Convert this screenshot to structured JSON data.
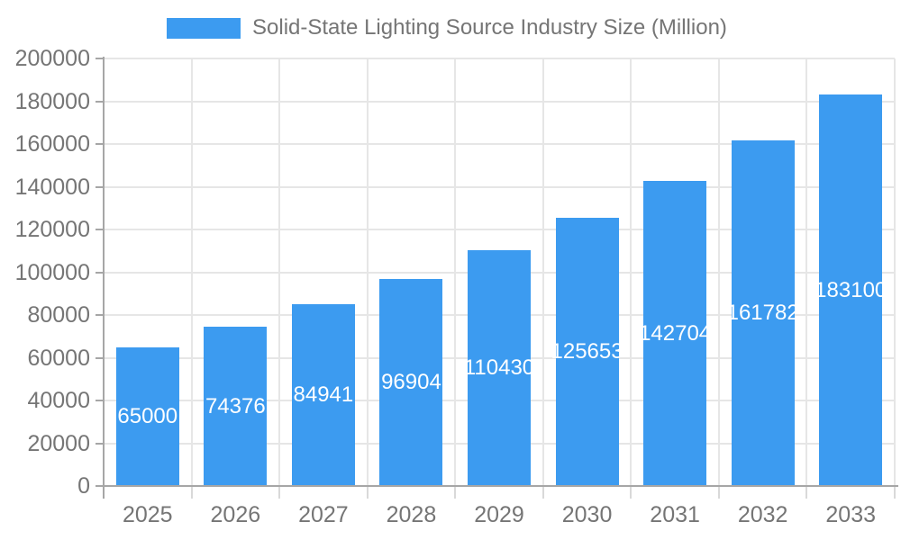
{
  "chart_data": {
    "type": "bar",
    "title": "Solid-State Lighting Source Industry Size (Million)",
    "legend_entries": [
      "Solid-State Lighting Source Industry Size (Million)"
    ],
    "legend_position": "top",
    "categories": [
      "2025",
      "2026",
      "2027",
      "2028",
      "2029",
      "2030",
      "2031",
      "2032",
      "2033"
    ],
    "series": [
      {
        "name": "Solid-State Lighting Source Industry Size (Million)",
        "values": [
          65000,
          74376,
          84941,
          96904,
          110430,
          125653,
          142704,
          161782,
          183100
        ]
      }
    ],
    "value_labels": [
      "65000",
      "74376",
      "84941",
      "96904",
      "110430",
      "125653",
      "142704",
      "161782",
      "183100"
    ],
    "value_label_position": "inside-center",
    "xlabel": "",
    "ylabel": "",
    "ylim": [
      0,
      200000
    ],
    "ytick_step": 20000,
    "ytick_labels": [
      "0",
      "20000",
      "40000",
      "60000",
      "80000",
      "100000",
      "120000",
      "140000",
      "160000",
      "180000",
      "200000"
    ],
    "grid": true
  },
  "colors": {
    "bar": "#3C9BF0",
    "bar_value_label": "#FFFFFF",
    "axis_line": "#A6A6A6",
    "grid_line": "#E6E6E6",
    "category_tick": "#D9D9D9",
    "axis_text": "#757575",
    "background": "#FFFFFF"
  }
}
